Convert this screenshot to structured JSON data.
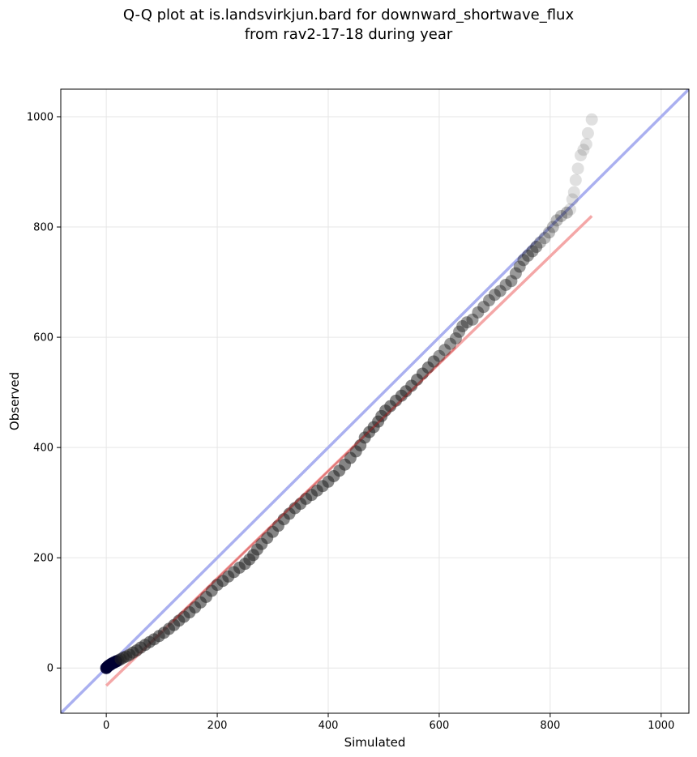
{
  "chart_data": {
    "type": "scatter",
    "title_line1": "Q-Q plot at is.landsvirkjun.bard for downward_shortwave_flux",
    "title_line2": "from rav2-17-18 during year",
    "xlabel": "Simulated",
    "ylabel": "Observed",
    "xlim": [
      -82,
      1050
    ],
    "ylim": [
      -82,
      1050
    ],
    "xticks": [
      0,
      200,
      400,
      600,
      800,
      1000
    ],
    "yticks": [
      0,
      200,
      400,
      600,
      800,
      1000
    ],
    "grid": true,
    "reference_line": {
      "kind": "1:1",
      "color": "#aab0f0"
    },
    "fit_line": {
      "color": "#f4a7a7",
      "x": [
        0,
        875
      ],
      "y": [
        -32,
        820
      ]
    },
    "points": [
      [
        0,
        0
      ],
      [
        2,
        2
      ],
      [
        4,
        4
      ],
      [
        7,
        6
      ],
      [
        10,
        8
      ],
      [
        14,
        10
      ],
      [
        18,
        12
      ],
      [
        22,
        14
      ],
      [
        26,
        16
      ],
      [
        31,
        19
      ],
      [
        36,
        21
      ],
      [
        42,
        24
      ],
      [
        48,
        28
      ],
      [
        55,
        32
      ],
      [
        62,
        37
      ],
      [
        70,
        42
      ],
      [
        78,
        47
      ],
      [
        86,
        52
      ],
      [
        95,
        58
      ],
      [
        104,
        64
      ],
      [
        113,
        71
      ],
      [
        122,
        78
      ],
      [
        131,
        86
      ],
      [
        140,
        93
      ],
      [
        150,
        101
      ],
      [
        160,
        110
      ],
      [
        170,
        119
      ],
      [
        180,
        129
      ],
      [
        190,
        140
      ],
      [
        200,
        151
      ],
      [
        210,
        158
      ],
      [
        220,
        166
      ],
      [
        230,
        174
      ],
      [
        240,
        182
      ],
      [
        250,
        189
      ],
      [
        258,
        197
      ],
      [
        265,
        205
      ],
      [
        272,
        215
      ],
      [
        280,
        225
      ],
      [
        290,
        236
      ],
      [
        300,
        247
      ],
      [
        310,
        258
      ],
      [
        320,
        270
      ],
      [
        330,
        280
      ],
      [
        340,
        290
      ],
      [
        350,
        298
      ],
      [
        360,
        307
      ],
      [
        370,
        314
      ],
      [
        380,
        322
      ],
      [
        390,
        330
      ],
      [
        400,
        338
      ],
      [
        410,
        348
      ],
      [
        420,
        358
      ],
      [
        430,
        369
      ],
      [
        440,
        381
      ],
      [
        450,
        393
      ],
      [
        458,
        404
      ],
      [
        466,
        418
      ],
      [
        474,
        428
      ],
      [
        482,
        437
      ],
      [
        490,
        447
      ],
      [
        496,
        457
      ],
      [
        503,
        467
      ],
      [
        512,
        475
      ],
      [
        522,
        485
      ],
      [
        532,
        494
      ],
      [
        540,
        502
      ],
      [
        550,
        512
      ],
      [
        560,
        523
      ],
      [
        570,
        534
      ],
      [
        580,
        545
      ],
      [
        590,
        556
      ],
      [
        600,
        566
      ],
      [
        610,
        577
      ],
      [
        620,
        588
      ],
      [
        630,
        598
      ],
      [
        636,
        610
      ],
      [
        642,
        620
      ],
      [
        650,
        627
      ],
      [
        660,
        632
      ],
      [
        670,
        645
      ],
      [
        680,
        655
      ],
      [
        690,
        667
      ],
      [
        700,
        677
      ],
      [
        710,
        684
      ],
      [
        720,
        695
      ],
      [
        730,
        702
      ],
      [
        738,
        716
      ],
      [
        745,
        728
      ],
      [
        752,
        740
      ],
      [
        760,
        748
      ],
      [
        768,
        756
      ],
      [
        775,
        764
      ],
      [
        782,
        772
      ],
      [
        790,
        780
      ],
      [
        798,
        790
      ],
      [
        805,
        800
      ],
      [
        812,
        812
      ],
      [
        820,
        820
      ],
      [
        830,
        826
      ],
      [
        836,
        832
      ],
      [
        840,
        850
      ],
      [
        843,
        863
      ],
      [
        846,
        885
      ],
      [
        850,
        906
      ],
      [
        855,
        930
      ],
      [
        860,
        940
      ],
      [
        865,
        950
      ],
      [
        868,
        970
      ],
      [
        875,
        995
      ]
    ]
  }
}
